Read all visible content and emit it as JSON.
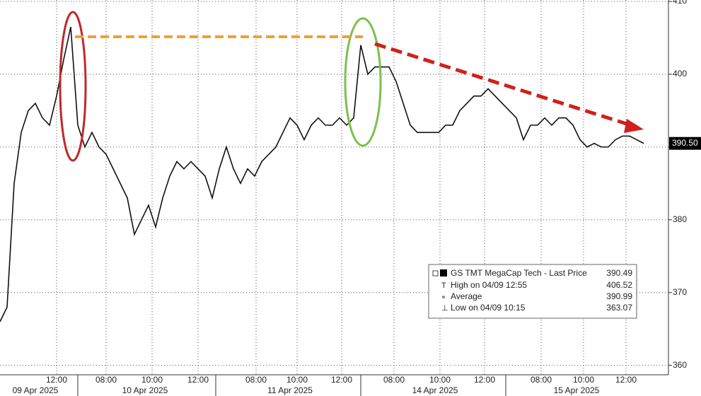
{
  "chart_data": {
    "type": "line",
    "x": [
      0,
      1,
      2,
      3,
      4,
      5,
      6,
      7,
      8,
      9,
      10,
      11,
      12,
      13,
      14,
      15,
      16,
      17,
      18,
      19,
      20,
      21,
      22,
      23,
      24,
      25,
      26,
      27,
      28,
      29,
      30,
      31,
      32,
      33,
      34,
      35,
      36,
      37,
      38,
      39,
      40,
      41,
      42,
      43,
      44,
      45,
      46,
      47,
      48,
      49,
      50,
      51,
      52,
      53,
      54,
      55,
      56,
      57,
      58,
      59,
      60,
      61,
      62,
      63,
      64,
      65,
      66,
      67,
      68,
      69,
      70,
      71,
      72,
      73,
      74,
      75,
      76,
      77,
      78,
      79,
      80,
      81,
      82,
      83,
      84,
      85,
      86,
      87,
      88,
      89,
      90,
      91
    ],
    "series": [
      {
        "name": "GS TMT MegaCap Tech - Last Price",
        "color": "#111111",
        "values": [
          366,
          368,
          385,
          392,
          395,
          396,
          394,
          393,
          397,
          402,
          406.5,
          393,
          390,
          392,
          390,
          389,
          387,
          385,
          383,
          378,
          380,
          382,
          379,
          383,
          386,
          388,
          387,
          388,
          387,
          386,
          383,
          387,
          390,
          387,
          385,
          387,
          386,
          388,
          389,
          390,
          392,
          394,
          393,
          391,
          393,
          394,
          393,
          393,
          394,
          393,
          394,
          404,
          400,
          401,
          401,
          401,
          399,
          396,
          393,
          392,
          392,
          392,
          392,
          393,
          393,
          395,
          396,
          397,
          397,
          398,
          397,
          396,
          395,
          394,
          391,
          393,
          393,
          394,
          393,
          394,
          394,
          393,
          391,
          390,
          390.5,
          390,
          390,
          391,
          391.5,
          391.5,
          391,
          390.5
        ]
      }
    ],
    "xlim": [
      0,
      94.5
    ],
    "xticks": [
      {
        "value": 8,
        "label": "12:00"
      },
      {
        "value": 15,
        "label": "08:00"
      },
      {
        "value": 21.5,
        "label": "10:00"
      },
      {
        "value": 28,
        "label": "12:00"
      },
      {
        "value": 36.2,
        "label": "08:00"
      },
      {
        "value": 42,
        "label": "10:00"
      },
      {
        "value": 48.3,
        "label": "12:00"
      },
      {
        "value": 55.7,
        "label": "08:00"
      },
      {
        "value": 62.2,
        "label": "10:00"
      },
      {
        "value": 68.5,
        "label": "12:00"
      },
      {
        "value": 76.5,
        "label": "08:00"
      },
      {
        "value": 82.5,
        "label": "10:00"
      },
      {
        "value": 88.5,
        "label": "12:00"
      }
    ],
    "xdates": [
      {
        "value": 5,
        "label": "09 Apr 2025"
      },
      {
        "value": 20.5,
        "label": "10 Apr 2025"
      },
      {
        "value": 41,
        "label": "11 Apr 2025"
      },
      {
        "value": 61.5,
        "label": "14 Apr 2025"
      },
      {
        "value": 81.5,
        "label": "15 Apr 2025"
      }
    ],
    "ylim": [
      358.7,
      410.2
    ],
    "yticks": [
      360,
      370,
      380,
      390,
      400,
      410
    ],
    "grid": true,
    "last_price": {
      "value": 390.5,
      "label": "390.50"
    },
    "legend": {
      "title": "GS TMT MegaCap Tech - Last Price",
      "title_value": "390.49",
      "rows": [
        {
          "label": "High on 04/09 12:55",
          "value": "406.52"
        },
        {
          "label": "Average",
          "value": "390.99"
        },
        {
          "label": "Low on 04/09 10:15",
          "value": "363.07"
        }
      ]
    }
  }
}
